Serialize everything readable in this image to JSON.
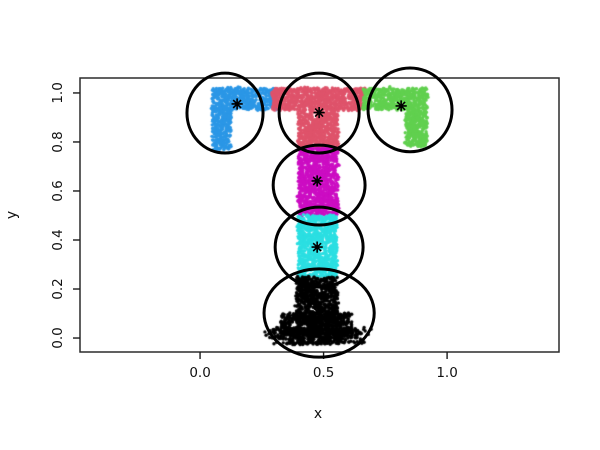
{
  "figure": {
    "background": "#ffffff",
    "description": "R scatter plot of T-shaped data clustered into 6 groups; thick black circles and asterisk marks show cluster centers"
  },
  "chart_data": {
    "type": "scatter",
    "title": "",
    "xlabel": "x",
    "ylabel": "y",
    "xlim": [
      -0.486,
      1.453
    ],
    "ylim": [
      -0.057,
      1.061
    ],
    "grid": false,
    "legend": null,
    "x_ticks": [
      {
        "value": 0.0,
        "label": "0.0"
      },
      {
        "value": 0.5,
        "label": "0.5"
      },
      {
        "value": 1.0,
        "label": "1.0"
      }
    ],
    "y_ticks": [
      {
        "value": 0.0,
        "label": "0.0"
      },
      {
        "value": 0.2,
        "label": "0.2"
      },
      {
        "value": 0.4,
        "label": "0.4"
      },
      {
        "value": 0.6,
        "label": "0.6"
      },
      {
        "value": 0.8,
        "label": "0.8"
      },
      {
        "value": 1.0,
        "label": "1.0"
      }
    ],
    "clusters": [
      {
        "name": "blue",
        "color": "#2B97E6",
        "center": {
          "x": 0.15,
          "y": 0.955
        },
        "ellipse": {
          "cx": 0.101,
          "cy": 0.918,
          "rx": 0.154,
          "ry": 0.163
        },
        "regions": [
          {
            "x0": 0.049,
            "x1": 0.312,
            "y0": 0.931,
            "y1": 1.02,
            "n": 560,
            "dist": "uniform"
          },
          {
            "x0": 0.049,
            "x1": 0.126,
            "y0": 0.767,
            "y1": 0.931,
            "n": 300,
            "dist": "uniform"
          }
        ]
      },
      {
        "name": "red",
        "color": "#DF536B",
        "center": {
          "x": 0.482,
          "y": 0.92
        },
        "ellipse": {
          "cx": 0.482,
          "cy": 0.918,
          "rx": 0.162,
          "ry": 0.163
        },
        "regions": [
          {
            "x0": 0.292,
            "x1": 0.668,
            "y0": 0.931,
            "y1": 1.02,
            "n": 850,
            "dist": "uniform"
          },
          {
            "x0": 0.397,
            "x1": 0.559,
            "y0": 0.776,
            "y1": 0.931,
            "n": 620,
            "dist": "uniform"
          }
        ]
      },
      {
        "name": "green",
        "color": "#61D04F",
        "center": {
          "x": 0.814,
          "y": 0.947
        },
        "ellipse": {
          "cx": 0.85,
          "cy": 0.931,
          "rx": 0.17,
          "ry": 0.171
        },
        "regions": [
          {
            "x0": 0.66,
            "x1": 0.919,
            "y0": 0.931,
            "y1": 1.02,
            "n": 540,
            "dist": "uniform"
          },
          {
            "x0": 0.83,
            "x1": 0.919,
            "y0": 0.784,
            "y1": 0.931,
            "n": 340,
            "dist": "uniform"
          }
        ]
      },
      {
        "name": "magenta",
        "color": "#CC0DC3",
        "center": {
          "x": 0.474,
          "y": 0.641
        },
        "ellipse": {
          "cx": 0.482,
          "cy": 0.624,
          "rx": 0.186,
          "ry": 0.163
        },
        "regions": [
          {
            "x0": 0.397,
            "x1": 0.559,
            "y0": 0.502,
            "y1": 0.776,
            "n": 1050,
            "dist": "uniform"
          }
        ]
      },
      {
        "name": "cyan",
        "color": "#2BDFE2",
        "center": {
          "x": 0.474,
          "y": 0.371
        },
        "ellipse": {
          "cx": 0.482,
          "cy": 0.371,
          "rx": 0.178,
          "ry": 0.163
        },
        "regions": [
          {
            "x0": 0.397,
            "x1": 0.555,
            "y0": 0.249,
            "y1": 0.502,
            "n": 950,
            "dist": "uniform"
          }
        ]
      },
      {
        "name": "black",
        "color": "#000000",
        "center": {
          "x": 0.478,
          "y": 0.105
        },
        "ellipse": {
          "cx": 0.482,
          "cy": 0.102,
          "rx": 0.223,
          "ry": 0.18
        },
        "regions": [
          {
            "x0": 0.389,
            "x1": 0.559,
            "y0": 0.053,
            "y1": 0.249,
            "n": 800,
            "dist": "uniform"
          },
          {
            "x0": 0.328,
            "x1": 0.615,
            "y0": 0.012,
            "y1": 0.102,
            "n": 500,
            "dist": "uniform"
          },
          {
            "x0": 0.235,
            "x1": 0.7,
            "y0": -0.025,
            "y1": 0.041,
            "n": 520,
            "dist": "triangular"
          }
        ]
      }
    ]
  }
}
